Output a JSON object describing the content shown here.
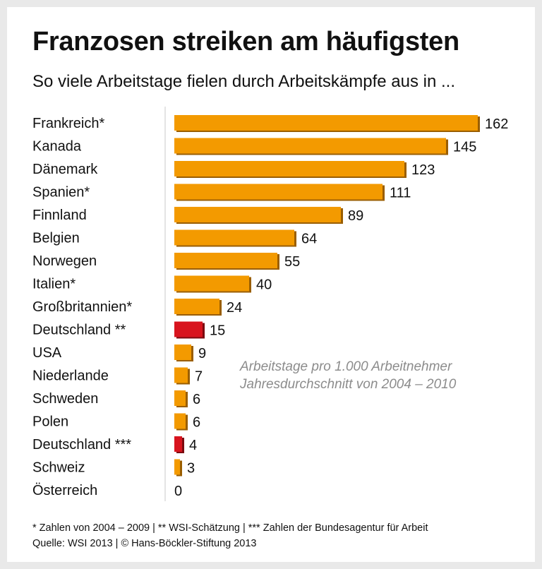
{
  "title": "Franzosen streiken am häufigsten",
  "subtitle": "So viele Arbeitstage fielen durch Arbeitskämpfe aus in ...",
  "annotation": {
    "line1": "Arbeitstage pro 1.000 Arbeitnehmer",
    "line2": "Jahresdurchschnitt von 2004 – 2010"
  },
  "footnote": {
    "line1": "* Zahlen von 2004 – 2009 | ** WSI-Schätzung | *** Zahlen der Bundesagentur für Arbeit",
    "line2": "Quelle: WSI 2013 | © Hans-Böckler-Stiftung 2013"
  },
  "colors": {
    "bar": "#f39a00",
    "bar_highlight": "#d8141e",
    "bar_shadow": "#9a5e00",
    "bar_highlight_shadow": "#7c0a10",
    "axis": "#c8c8c8"
  },
  "chart_data": {
    "type": "bar",
    "orientation": "horizontal",
    "title": "Franzosen streiken am häufigsten",
    "subtitle": "So viele Arbeitstage fielen durch Arbeitskämpfe aus in ...",
    "xlim": [
      0,
      162
    ],
    "grid": false,
    "categories": [
      "Frankreich*",
      "Kanada",
      "Dänemark",
      "Spanien*",
      "Finnland",
      "Belgien",
      "Norwegen",
      "Italien*",
      "Großbritannien*",
      "Deutschland **",
      "USA",
      "Niederlande",
      "Schweden",
      "Polen",
      "Deutschland ***",
      "Schweiz",
      "Österreich"
    ],
    "values": [
      162,
      145,
      123,
      111,
      89,
      64,
      55,
      40,
      24,
      15,
      9,
      7,
      6,
      6,
      4,
      3,
      0
    ],
    "highlighted": [
      "Deutschland **",
      "Deutschland ***"
    ]
  }
}
